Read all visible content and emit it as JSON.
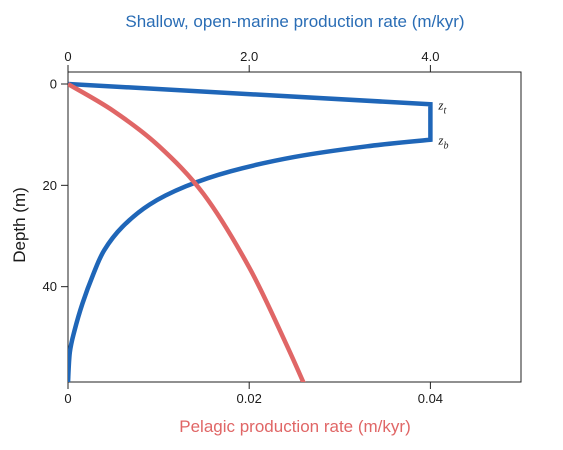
{
  "chart_data": {
    "type": "line",
    "title": "",
    "top_axis": {
      "label": "Shallow, open-marine production rate (m/kyr)",
      "range": [
        0,
        5.0
      ],
      "ticks": [
        0,
        2.0,
        4.0
      ],
      "tick_labels": [
        "0",
        "2.0",
        "4.0"
      ],
      "color": "#2a6db5"
    },
    "bottom_axis": {
      "label": "Pelagic production rate (m/kyr)",
      "range": [
        0,
        0.05
      ],
      "ticks": [
        0,
        0.02,
        0.04
      ],
      "tick_labels": [
        "0",
        "0.02",
        "0.04"
      ],
      "color": "#e06666"
    },
    "y_axis": {
      "label": "Depth (m)",
      "range": [
        0,
        60
      ],
      "inverted": true,
      "ticks": [
        0,
        20,
        40
      ],
      "tick_labels": [
        "0",
        "20",
        "40"
      ]
    },
    "grid": false,
    "series": [
      {
        "axis": "top",
        "color": "#1f66b8",
        "points": [
          [
            0,
            0
          ],
          [
            4.0,
            4
          ],
          [
            4.0,
            11
          ],
          [
            3.3,
            12.3
          ],
          [
            2.5,
            14.4
          ],
          [
            1.8,
            17.2
          ],
          [
            1.3,
            20.2
          ],
          [
            0.9,
            23.8
          ],
          [
            0.6,
            28.2
          ],
          [
            0.4,
            32.8
          ],
          [
            0.28,
            37.5
          ],
          [
            0.16,
            43.3
          ],
          [
            0.07,
            48.8
          ],
          [
            0.02,
            53
          ],
          [
            0,
            59
          ]
        ]
      },
      {
        "axis": "bottom",
        "color": "#e06666",
        "points": [
          [
            0,
            0
          ],
          [
            0.005,
            5.3
          ],
          [
            0.01,
            12.2
          ],
          [
            0.015,
            21.8
          ],
          [
            0.02,
            36.2
          ],
          [
            0.024,
            51
          ],
          [
            0.0265,
            61
          ]
        ]
      }
    ],
    "annotations": [
      {
        "text_main": "z",
        "text_sub": "t",
        "x": 4.0,
        "y": 4
      },
      {
        "text_main": "z",
        "text_sub": "b",
        "x": 4.0,
        "y": 11
      }
    ]
  }
}
